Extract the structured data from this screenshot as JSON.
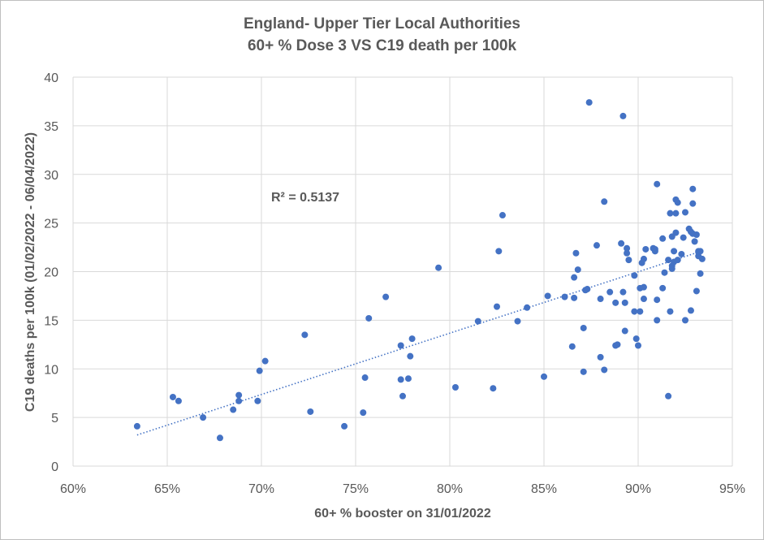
{
  "chart_data": {
    "type": "scatter",
    "title": [
      "England- Upper Tier Local Authorities",
      "60+ % Dose 3 VS C19 death per 100k"
    ],
    "xlabel": "60+ % booster on 31/01/2022",
    "ylabel": "C19 deaths per 100k (01/02/2022 - 06/04/2022)",
    "xlim": [
      60,
      95
    ],
    "ylim": [
      0,
      40
    ],
    "x_ticks": [
      60,
      65,
      70,
      75,
      80,
      85,
      90,
      95
    ],
    "x_tick_labels": [
      "60%",
      "65%",
      "70%",
      "75%",
      "80%",
      "85%",
      "90%",
      "95%"
    ],
    "y_ticks": [
      0,
      5,
      10,
      15,
      20,
      25,
      30,
      35,
      40
    ],
    "y_tick_labels": [
      "0",
      "5",
      "10",
      "15",
      "20",
      "25",
      "30",
      "35",
      "40"
    ],
    "grid": true,
    "marker_color": "#4472c4",
    "trendline": {
      "type": "linear",
      "x": [
        63.4,
        93.2
      ],
      "y": [
        3.2,
        22.0
      ],
      "style": "dotted",
      "color": "#4472c4"
    },
    "annotation": "R² = 0.5137",
    "points": [
      [
        63.4,
        4.1
      ],
      [
        65.3,
        7.1
      ],
      [
        65.6,
        6.7
      ],
      [
        66.9,
        5.0
      ],
      [
        67.8,
        2.9
      ],
      [
        68.5,
        5.8
      ],
      [
        68.8,
        7.3
      ],
      [
        68.8,
        6.7
      ],
      [
        69.8,
        6.7
      ],
      [
        69.9,
        9.8
      ],
      [
        70.2,
        10.8
      ],
      [
        72.3,
        13.5
      ],
      [
        72.6,
        5.6
      ],
      [
        74.4,
        4.1
      ],
      [
        75.4,
        5.5
      ],
      [
        75.5,
        9.1
      ],
      [
        75.7,
        15.2
      ],
      [
        76.6,
        17.4
      ],
      [
        77.4,
        12.4
      ],
      [
        77.4,
        8.9
      ],
      [
        77.5,
        7.2
      ],
      [
        77.8,
        9.0
      ],
      [
        77.9,
        11.3
      ],
      [
        78.0,
        13.1
      ],
      [
        79.4,
        20.4
      ],
      [
        80.3,
        8.1
      ],
      [
        81.5,
        14.9
      ],
      [
        82.3,
        8.0
      ],
      [
        82.5,
        16.4
      ],
      [
        82.6,
        22.1
      ],
      [
        82.8,
        25.8
      ],
      [
        83.6,
        14.9
      ],
      [
        84.1,
        16.3
      ],
      [
        85.0,
        9.2
      ],
      [
        85.2,
        17.5
      ],
      [
        86.1,
        17.4
      ],
      [
        86.5,
        12.3
      ],
      [
        86.6,
        17.3
      ],
      [
        86.6,
        19.4
      ],
      [
        86.7,
        21.9
      ],
      [
        86.8,
        20.2
      ],
      [
        87.1,
        9.7
      ],
      [
        87.1,
        14.2
      ],
      [
        87.2,
        18.1
      ],
      [
        87.3,
        18.2
      ],
      [
        87.4,
        37.4
      ],
      [
        87.8,
        22.7
      ],
      [
        88.0,
        11.2
      ],
      [
        88.0,
        17.2
      ],
      [
        88.2,
        27.2
      ],
      [
        88.2,
        9.9
      ],
      [
        88.5,
        17.9
      ],
      [
        88.8,
        16.8
      ],
      [
        88.8,
        12.4
      ],
      [
        88.9,
        12.5
      ],
      [
        89.1,
        22.9
      ],
      [
        89.2,
        36.0
      ],
      [
        89.2,
        17.9
      ],
      [
        89.3,
        13.9
      ],
      [
        89.3,
        16.8
      ],
      [
        89.4,
        22.4
      ],
      [
        89.4,
        21.9
      ],
      [
        89.5,
        21.2
      ],
      [
        89.8,
        19.6
      ],
      [
        89.8,
        15.9
      ],
      [
        89.9,
        13.1
      ],
      [
        90.0,
        12.4
      ],
      [
        90.1,
        15.9
      ],
      [
        90.1,
        18.3
      ],
      [
        90.2,
        20.9
      ],
      [
        90.3,
        18.4
      ],
      [
        90.3,
        17.2
      ],
      [
        90.3,
        21.3
      ],
      [
        90.4,
        22.3
      ],
      [
        90.8,
        22.4
      ],
      [
        90.9,
        22.3
      ],
      [
        90.9,
        22.1
      ],
      [
        91.0,
        17.1
      ],
      [
        91.0,
        29.0
      ],
      [
        91.0,
        15.0
      ],
      [
        91.3,
        18.3
      ],
      [
        91.3,
        23.4
      ],
      [
        91.4,
        19.9
      ],
      [
        91.6,
        21.2
      ],
      [
        91.6,
        7.2
      ],
      [
        91.7,
        26.0
      ],
      [
        91.7,
        15.9
      ],
      [
        91.8,
        23.6
      ],
      [
        91.8,
        20.6
      ],
      [
        91.8,
        20.3
      ],
      [
        91.9,
        21.0
      ],
      [
        91.9,
        22.1
      ],
      [
        92.0,
        24.0
      ],
      [
        92.0,
        27.4
      ],
      [
        92.0,
        26.0
      ],
      [
        92.1,
        21.2
      ],
      [
        92.1,
        27.1
      ],
      [
        92.3,
        21.8
      ],
      [
        92.4,
        23.5
      ],
      [
        92.5,
        26.1
      ],
      [
        92.5,
        15.0
      ],
      [
        92.7,
        24.4
      ],
      [
        92.8,
        24.1
      ],
      [
        92.8,
        16.0
      ],
      [
        92.9,
        23.9
      ],
      [
        92.9,
        28.5
      ],
      [
        92.9,
        27.0
      ],
      [
        93.0,
        23.1
      ],
      [
        93.1,
        23.8
      ],
      [
        93.1,
        18.0
      ],
      [
        93.2,
        22.1
      ],
      [
        93.2,
        21.6
      ],
      [
        93.2,
        22.0
      ],
      [
        93.3,
        19.8
      ],
      [
        93.3,
        22.1
      ],
      [
        93.4,
        21.3
      ]
    ]
  }
}
